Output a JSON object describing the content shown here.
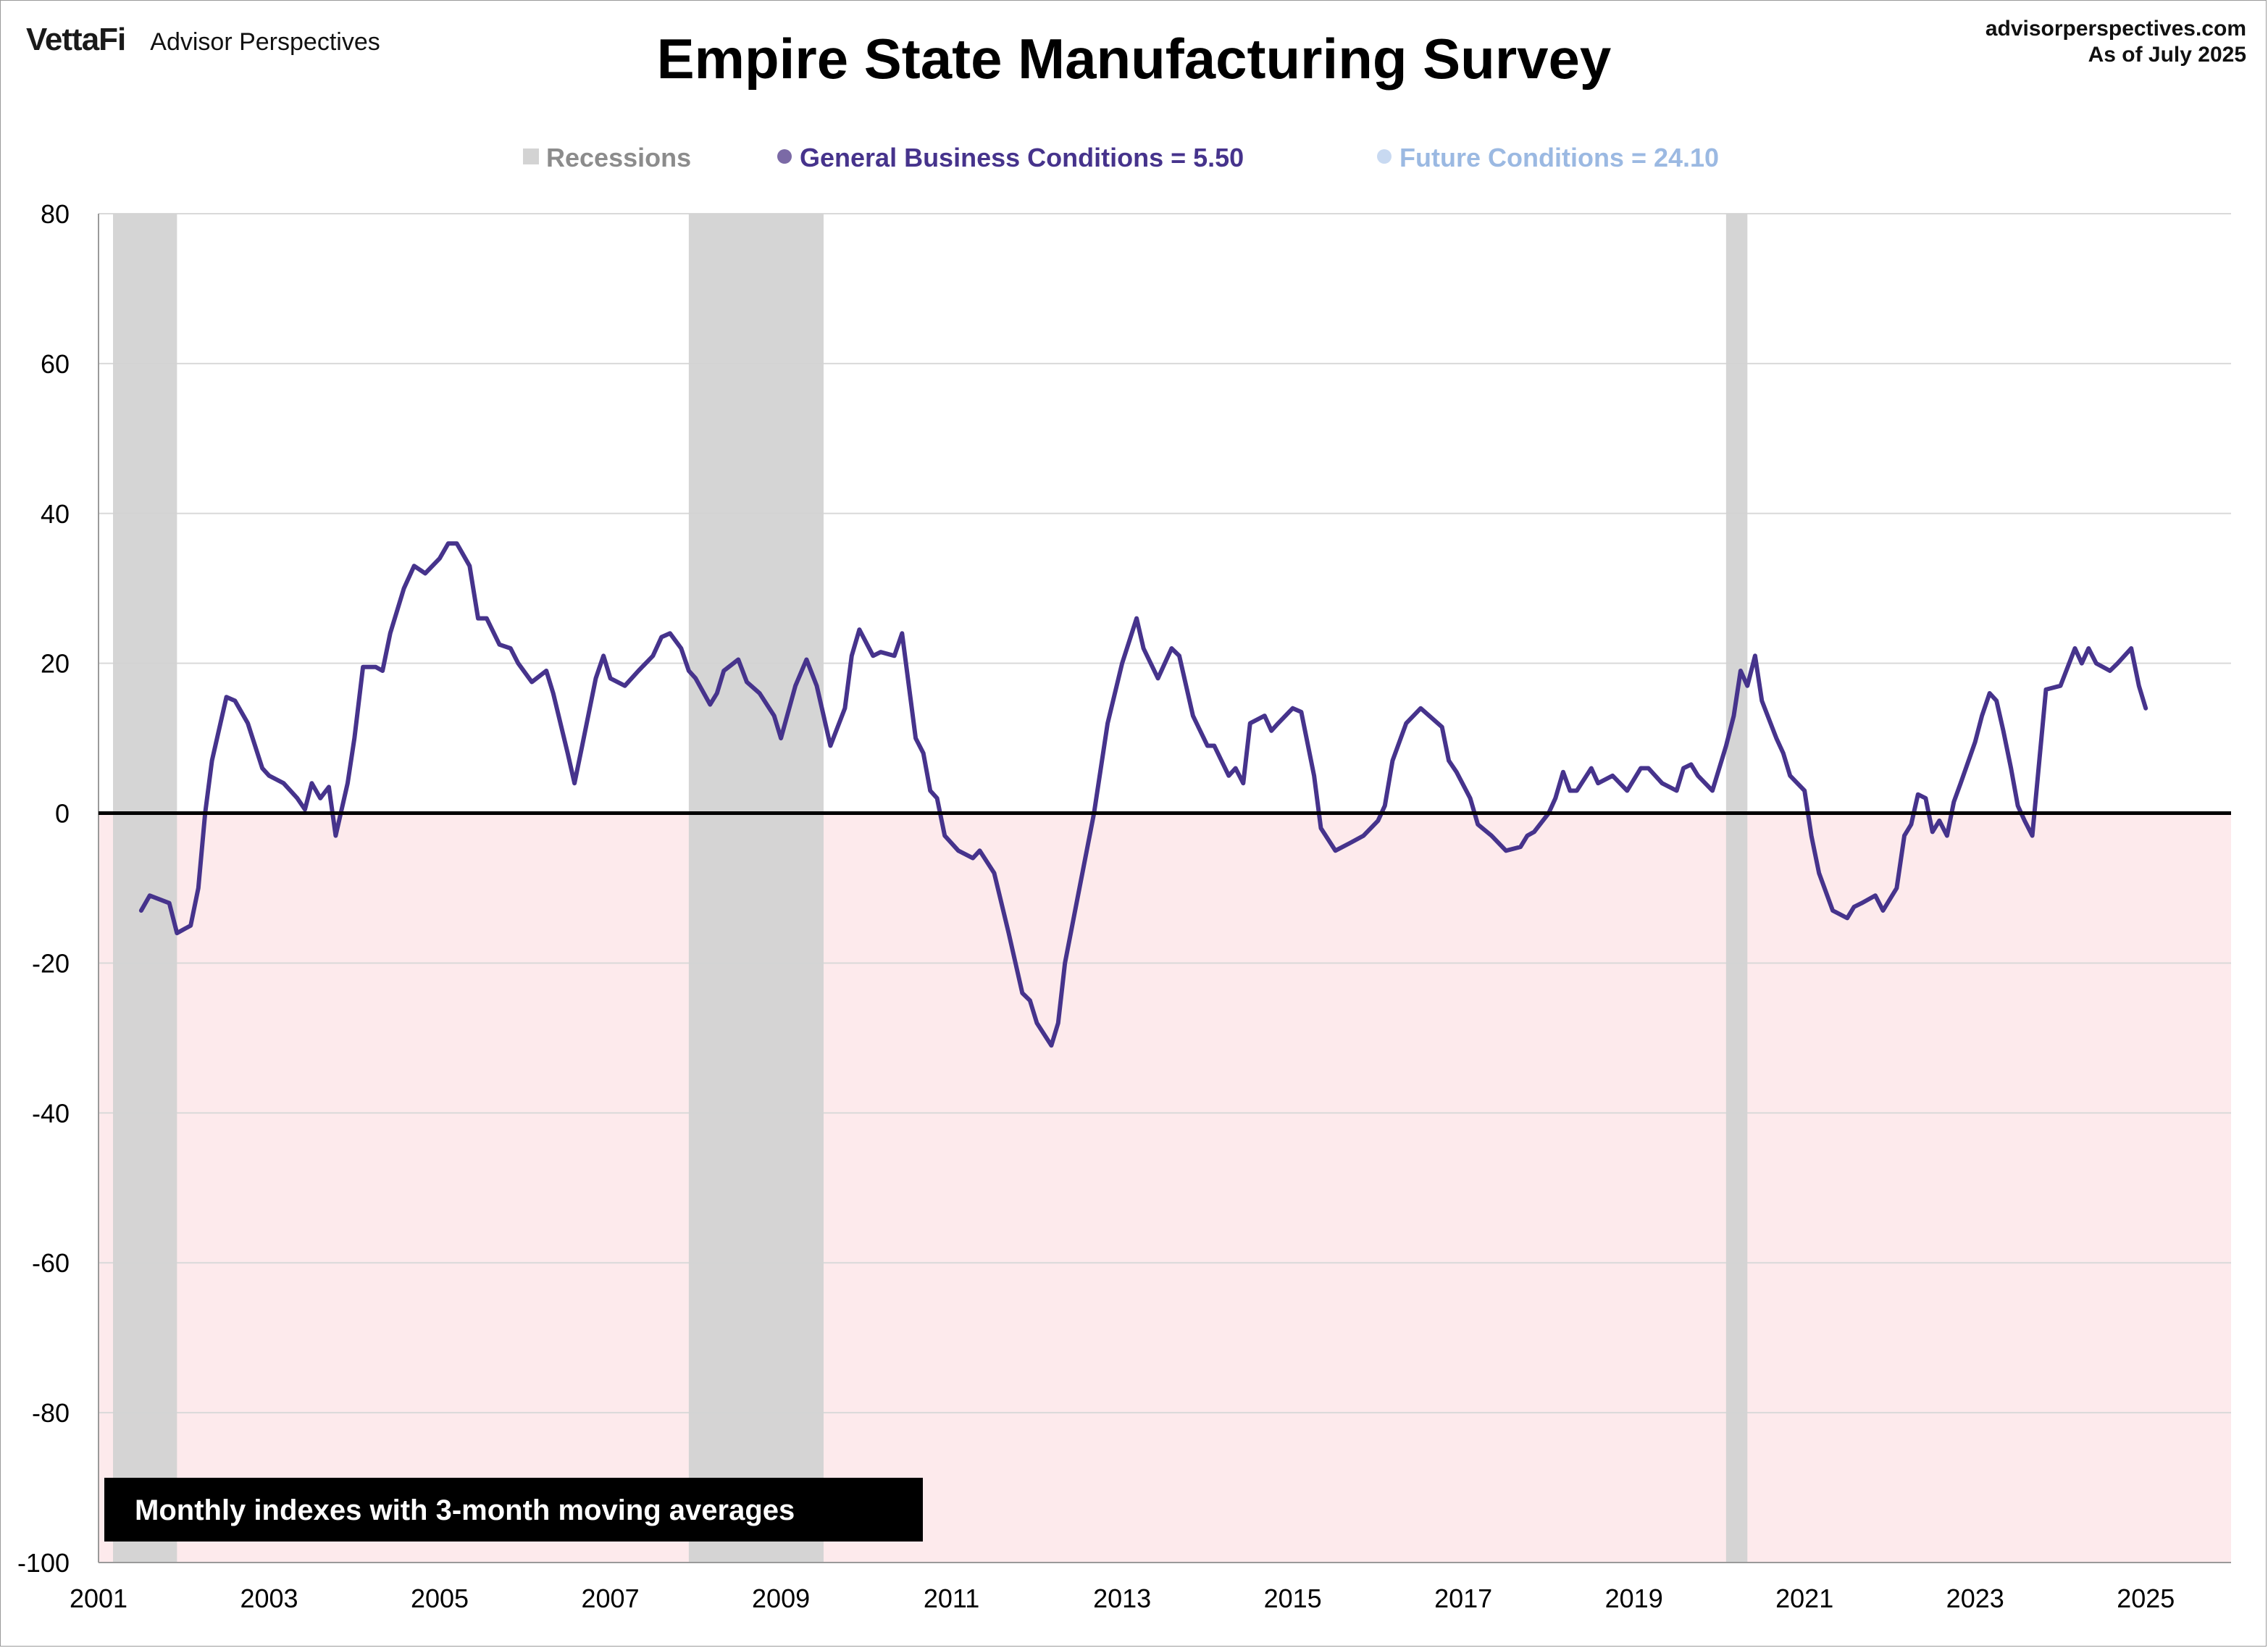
{
  "header": {
    "brand_logo": "VettaFi",
    "brand_sub": "Advisor Perspectives",
    "site": "advisorperspectives.com",
    "as_of": "As of July 2025"
  },
  "colors": {
    "recession": "#d3d3d3",
    "negative_zone": "#fdeaec",
    "general_line": "#46338c",
    "general_dots": "#7b6aa6",
    "future_line": "#9bb9e2",
    "future_dots": "#c8d9f1",
    "grid": "#d9d9d9",
    "zero_line": "#000000",
    "legend_recession_text": "#8c8c8c"
  },
  "note": "Monthly indexes with 3-month moving averages",
  "chart_data": {
    "type": "line",
    "title": "Empire State Manufacturing Survey",
    "xlabel": "",
    "ylabel": "",
    "x_range": [
      2001.0,
      2026.0
    ],
    "ylim": [
      -100,
      80
    ],
    "y_ticks": [
      80,
      60,
      40,
      20,
      0,
      -20,
      -40,
      -60,
      -80,
      -100
    ],
    "x_ticks": [
      "2001",
      "2003",
      "2005",
      "2007",
      "2009",
      "2011",
      "2013",
      "2015",
      "2017",
      "2019",
      "2021",
      "2023",
      "2025"
    ],
    "grid": true,
    "legend_position": "top-center",
    "legend": [
      {
        "key": "recessions",
        "label": "Recessions"
      },
      {
        "key": "general",
        "label": "General Business Conditions = 5.50"
      },
      {
        "key": "future",
        "label": "Future Conditions = 24.10"
      }
    ],
    "recessions": [
      [
        2001.17,
        2001.92
      ],
      [
        2007.92,
        2009.5
      ],
      [
        2020.08,
        2020.33
      ]
    ],
    "series": [
      {
        "key": "general",
        "name": "General Business Conditions",
        "latest": 5.5,
        "moving_average": [
          [
            2001.5,
            -13
          ],
          [
            2001.6,
            -11
          ],
          [
            2001.83,
            -12
          ],
          [
            2001.92,
            -16
          ],
          [
            2002.08,
            -15
          ],
          [
            2002.17,
            -10
          ],
          [
            2002.25,
            0
          ],
          [
            2002.33,
            7
          ],
          [
            2002.5,
            15.5
          ],
          [
            2002.6,
            15
          ],
          [
            2002.75,
            12
          ],
          [
            2002.92,
            6
          ],
          [
            2003.0,
            5
          ],
          [
            2003.17,
            4
          ],
          [
            2003.33,
            2
          ],
          [
            2003.42,
            0.5
          ],
          [
            2003.5,
            4
          ],
          [
            2003.6,
            2
          ],
          [
            2003.7,
            3.5
          ],
          [
            2003.78,
            -3
          ],
          [
            2003.92,
            4
          ],
          [
            2004.0,
            10
          ],
          [
            2004.1,
            19.5
          ],
          [
            2004.25,
            19.5
          ],
          [
            2004.33,
            19
          ],
          [
            2004.42,
            24
          ],
          [
            2004.58,
            30
          ],
          [
            2004.7,
            33
          ],
          [
            2004.83,
            32
          ],
          [
            2005.0,
            34
          ],
          [
            2005.1,
            36
          ],
          [
            2005.2,
            36
          ],
          [
            2005.35,
            33
          ],
          [
            2005.45,
            26
          ],
          [
            2005.55,
            26
          ],
          [
            2005.7,
            22.5
          ],
          [
            2005.83,
            22
          ],
          [
            2005.92,
            20
          ],
          [
            2006.08,
            17.5
          ],
          [
            2006.25,
            19
          ],
          [
            2006.33,
            16
          ],
          [
            2006.5,
            8
          ],
          [
            2006.58,
            4
          ],
          [
            2006.67,
            9
          ],
          [
            2006.83,
            18
          ],
          [
            2006.92,
            21
          ],
          [
            2007.0,
            18
          ],
          [
            2007.17,
            17
          ],
          [
            2007.33,
            19
          ],
          [
            2007.5,
            21
          ],
          [
            2007.6,
            23.5
          ],
          [
            2007.7,
            24
          ],
          [
            2007.83,
            22
          ],
          [
            2007.92,
            19
          ],
          [
            2008.0,
            18
          ],
          [
            2008.17,
            14.5
          ],
          [
            2008.25,
            16
          ],
          [
            2008.33,
            19
          ],
          [
            2008.5,
            20.5
          ],
          [
            2008.6,
            17.5
          ],
          [
            2008.75,
            16
          ],
          [
            2008.92,
            13
          ],
          [
            2009.0,
            10
          ],
          [
            2009.17,
            17
          ],
          [
            2009.3,
            20.5
          ],
          [
            2009.42,
            17
          ],
          [
            2009.5,
            13
          ],
          [
            2009.58,
            9
          ],
          [
            2009.75,
            14
          ],
          [
            2009.83,
            21
          ],
          [
            2009.92,
            24.5
          ],
          [
            2010.08,
            21
          ],
          [
            2010.17,
            21.5
          ],
          [
            2010.33,
            21
          ],
          [
            2010.42,
            24
          ],
          [
            2010.58,
            10
          ],
          [
            2010.67,
            8
          ],
          [
            2010.75,
            3
          ],
          [
            2010.83,
            2
          ],
          [
            2010.92,
            -3
          ],
          [
            2011.08,
            -5
          ],
          [
            2011.25,
            -6
          ],
          [
            2011.33,
            -5
          ],
          [
            2011.5,
            -8
          ],
          [
            2011.67,
            -16
          ],
          [
            2011.83,
            -24
          ],
          [
            2011.92,
            -25
          ],
          [
            2012.0,
            -28
          ],
          [
            2012.17,
            -31
          ],
          [
            2012.25,
            -28
          ],
          [
            2012.33,
            -20
          ],
          [
            2012.5,
            -10
          ],
          [
            2012.67,
            0
          ],
          [
            2012.83,
            12
          ],
          [
            2013.0,
            20
          ],
          [
            2013.17,
            26
          ],
          [
            2013.25,
            22
          ],
          [
            2013.42,
            18
          ],
          [
            2013.58,
            22
          ],
          [
            2013.67,
            21
          ],
          [
            2013.83,
            13
          ],
          [
            2014.0,
            9
          ],
          [
            2014.08,
            9
          ],
          [
            2014.25,
            5
          ],
          [
            2014.33,
            6
          ],
          [
            2014.42,
            4
          ],
          [
            2014.5,
            12
          ],
          [
            2014.67,
            13
          ],
          [
            2014.75,
            11
          ],
          [
            2014.83,
            12
          ],
          [
            2015.0,
            14
          ],
          [
            2015.1,
            13.5
          ],
          [
            2015.25,
            5
          ],
          [
            2015.33,
            -2
          ],
          [
            2015.5,
            -5
          ],
          [
            2015.67,
            -4
          ],
          [
            2015.83,
            -3
          ],
          [
            2016.0,
            -1
          ],
          [
            2016.08,
            1
          ],
          [
            2016.17,
            7
          ],
          [
            2016.33,
            12
          ],
          [
            2016.5,
            14
          ],
          [
            2016.6,
            13
          ],
          [
            2016.75,
            11.5
          ],
          [
            2016.83,
            7
          ],
          [
            2016.92,
            5.5
          ],
          [
            2017.08,
            2
          ],
          [
            2017.17,
            -1.5
          ],
          [
            2017.33,
            -3
          ],
          [
            2017.5,
            -5
          ],
          [
            2017.67,
            -4.5
          ],
          [
            2017.75,
            -3
          ],
          [
            2017.83,
            -2.5
          ],
          [
            2018.0,
            0
          ],
          [
            2018.08,
            2
          ],
          [
            2018.17,
            5.5
          ],
          [
            2018.25,
            3
          ],
          [
            2018.33,
            3
          ],
          [
            2018.5,
            6
          ],
          [
            2018.58,
            4
          ],
          [
            2018.75,
            5
          ],
          [
            2018.92,
            3
          ],
          [
            2019.08,
            6
          ],
          [
            2019.17,
            6
          ],
          [
            2019.33,
            4
          ],
          [
            2019.5,
            3
          ],
          [
            2019.58,
            6
          ],
          [
            2019.67,
            6.5
          ],
          [
            2019.75,
            5
          ],
          [
            2019.92,
            3
          ],
          [
            2020.08,
            9
          ],
          [
            2020.17,
            13
          ],
          [
            2020.25,
            19
          ],
          [
            2020.33,
            17
          ],
          [
            2020.42,
            21
          ],
          [
            2020.5,
            15
          ],
          [
            2020.67,
            10
          ],
          [
            2020.75,
            8
          ],
          [
            2020.83,
            5
          ],
          [
            2021.0,
            3
          ],
          [
            2021.08,
            -3
          ],
          [
            2021.17,
            -8
          ],
          [
            2021.33,
            -13
          ],
          [
            2021.5,
            -14
          ],
          [
            2021.58,
            -12.5
          ],
          [
            2021.67,
            -12
          ],
          [
            2021.83,
            -11
          ],
          [
            2021.92,
            -13
          ],
          [
            2022.08,
            -10
          ],
          [
            2022.17,
            -3
          ],
          [
            2022.25,
            -1.5
          ],
          [
            2022.33,
            2.5
          ],
          [
            2022.42,
            2
          ],
          [
            2022.5,
            -2.5
          ],
          [
            2022.58,
            -1
          ],
          [
            2022.67,
            -3
          ],
          [
            2022.75,
            1.5
          ],
          [
            2022.83,
            4
          ],
          [
            2023.0,
            9.5
          ],
          [
            2023.08,
            13
          ],
          [
            2023.17,
            16
          ],
          [
            2023.25,
            15
          ],
          [
            2023.33,
            11
          ],
          [
            2023.42,
            6
          ],
          [
            2023.5,
            1
          ],
          [
            2023.58,
            -1
          ],
          [
            2023.67,
            -3
          ],
          [
            2023.83,
            16.5
          ],
          [
            2024.0,
            17
          ],
          [
            2024.17,
            22
          ],
          [
            2024.25,
            20
          ],
          [
            2024.33,
            22
          ],
          [
            2024.42,
            20
          ],
          [
            2024.58,
            19
          ],
          [
            2024.67,
            20
          ],
          [
            2024.83,
            22
          ],
          [
            2024.92,
            17
          ],
          [
            2025.0,
            14
          ]
        ],
        "monthly": []
      },
      {
        "key": "future",
        "name": "Future Conditions",
        "latest": 24.1,
        "moving_average": [],
        "monthly": []
      }
    ]
  }
}
